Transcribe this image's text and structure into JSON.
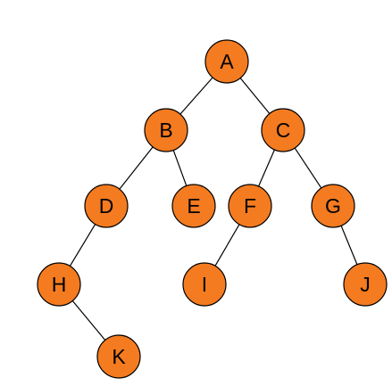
{
  "diagram": {
    "type": "binary-tree",
    "node_fill": "#F47B20",
    "node_stroke": "#000000",
    "edge_color": "#000000",
    "nodes": [
      {
        "id": "A",
        "label": "A"
      },
      {
        "id": "B",
        "label": "B"
      },
      {
        "id": "C",
        "label": "C"
      },
      {
        "id": "D",
        "label": "D"
      },
      {
        "id": "E",
        "label": "E"
      },
      {
        "id": "F",
        "label": "F"
      },
      {
        "id": "G",
        "label": "G"
      },
      {
        "id": "H",
        "label": "H"
      },
      {
        "id": "I",
        "label": "I"
      },
      {
        "id": "J",
        "label": "J"
      },
      {
        "id": "K",
        "label": "K"
      }
    ],
    "edges": [
      {
        "from": "A",
        "to": "B"
      },
      {
        "from": "A",
        "to": "C"
      },
      {
        "from": "B",
        "to": "D"
      },
      {
        "from": "B",
        "to": "E"
      },
      {
        "from": "C",
        "to": "F"
      },
      {
        "from": "C",
        "to": "G"
      },
      {
        "from": "D",
        "to": "H"
      },
      {
        "from": "F",
        "to": "I"
      },
      {
        "from": "G",
        "to": "J"
      },
      {
        "from": "H",
        "to": "K"
      }
    ]
  }
}
